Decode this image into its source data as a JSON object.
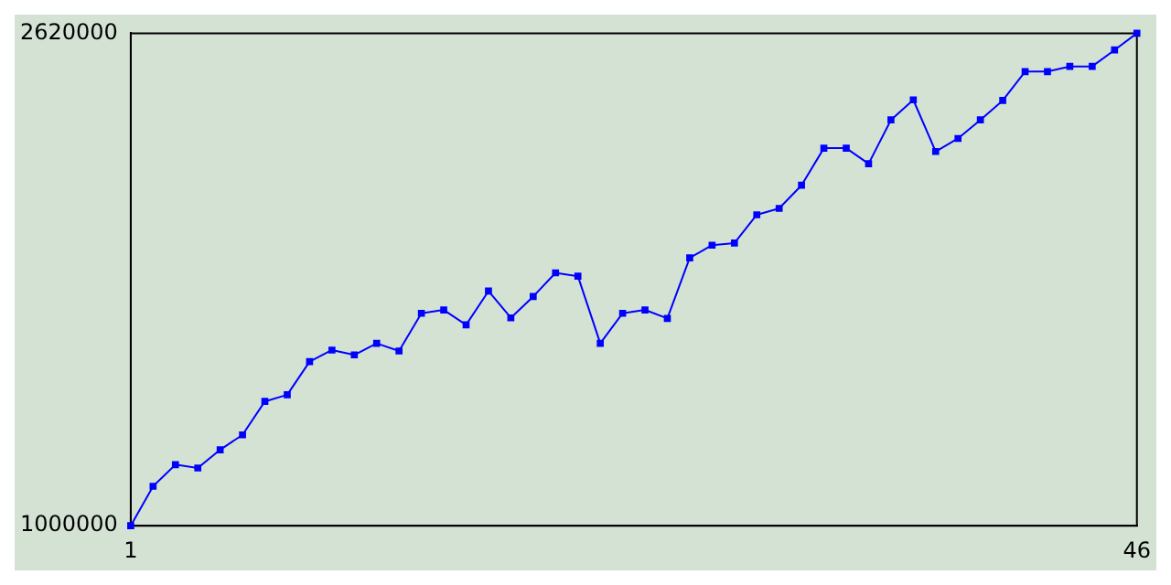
{
  "chart_data": {
    "type": "line",
    "x": [
      1,
      2,
      3,
      4,
      5,
      6,
      7,
      8,
      9,
      10,
      11,
      12,
      13,
      14,
      15,
      16,
      17,
      18,
      19,
      20,
      21,
      22,
      23,
      24,
      25,
      26,
      27,
      28,
      29,
      30,
      31,
      32,
      33,
      34,
      35,
      36,
      37,
      38,
      39,
      40,
      41,
      42,
      43,
      44,
      45,
      46
    ],
    "series": [
      {
        "color": "#0000ff",
        "values": [
          1000000,
          1130000,
          1201000,
          1190000,
          1250000,
          1299000,
          1409000,
          1431000,
          1540000,
          1578000,
          1562000,
          1600000,
          1575000,
          1699000,
          1710000,
          1661000,
          1772000,
          1684000,
          1754000,
          1832000,
          1821000,
          1600000,
          1699000,
          1710000,
          1682000,
          1881000,
          1923000,
          1930000,
          2023000,
          2044000,
          2120000,
          2242000,
          2242000,
          2191000,
          2335000,
          2401000,
          2231000,
          2274000,
          2335000,
          2399000,
          2494000,
          2494000,
          2511000,
          2511000,
          2565000,
          2620000
        ]
      }
    ],
    "xlim": [
      1,
      46
    ],
    "xticks": [
      1,
      46
    ],
    "ylim": [
      1000000,
      2620000
    ],
    "yticks": [
      1000000,
      2620000
    ],
    "grid": false,
    "legend": false,
    "marker": "square",
    "line_style": "solid"
  }
}
